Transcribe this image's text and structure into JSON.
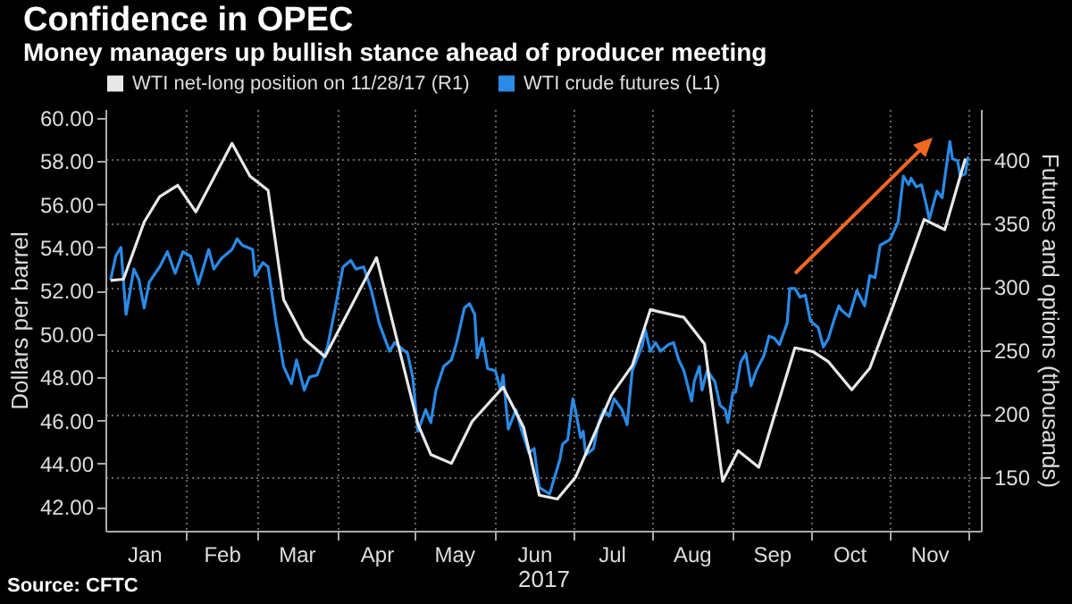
{
  "chart_data": {
    "type": "line",
    "title": "Confidence in OPEC",
    "subtitle": "Money managers up bullish stance ahead of producer meeting",
    "xlabel": "2017",
    "ylabel": "Dollars per barrel",
    "y2label": "Futures and options (thousands)",
    "annotations": [
      "Source: CFTC"
    ],
    "legend": "top left",
    "grid": true,
    "xlim": [
      "2017-01-01",
      "2017-12-06"
    ],
    "xticks": [
      {
        "value": "2017-01-16",
        "label": "Jan"
      },
      {
        "value": "2017-02-01",
        "label": null
      },
      {
        "value": "2017-02-15",
        "label": "Feb"
      },
      {
        "value": "2017-03-01",
        "label": null
      },
      {
        "value": "2017-03-16",
        "label": "Mar"
      },
      {
        "value": "2017-04-01",
        "label": null
      },
      {
        "value": "2017-04-16",
        "label": "Apr"
      },
      {
        "value": "2017-05-01",
        "label": null
      },
      {
        "value": "2017-05-16",
        "label": "May"
      },
      {
        "value": "2017-06-01",
        "label": null
      },
      {
        "value": "2017-06-16",
        "label": "Jun"
      },
      {
        "value": "2017-07-01",
        "label": null
      },
      {
        "value": "2017-07-16",
        "label": "Jul"
      },
      {
        "value": "2017-08-01",
        "label": null
      },
      {
        "value": "2017-08-16",
        "label": "Aug"
      },
      {
        "value": "2017-09-01",
        "label": null
      },
      {
        "value": "2017-09-16",
        "label": "Sep"
      },
      {
        "value": "2017-10-01",
        "label": null
      },
      {
        "value": "2017-10-16",
        "label": "Oct"
      },
      {
        "value": "2017-11-01",
        "label": null
      },
      {
        "value": "2017-11-16",
        "label": "Nov"
      },
      {
        "value": "2017-12-01",
        "label": null
      }
    ],
    "ylim": [
      40.9,
      60.4
    ],
    "yticks": [
      {
        "value": 42,
        "label": "42.00"
      },
      {
        "value": 44,
        "label": "44.00"
      },
      {
        "value": 46,
        "label": "46.00"
      },
      {
        "value": 48,
        "label": "48.00"
      },
      {
        "value": 50,
        "label": "50.00"
      },
      {
        "value": 52,
        "label": "52.00"
      },
      {
        "value": 54,
        "label": "54.00"
      },
      {
        "value": 56,
        "label": "56.00"
      },
      {
        "value": 58,
        "label": "58.00"
      },
      {
        "value": 60,
        "label": "60.00"
      }
    ],
    "y2lim": [
      108,
      440
    ],
    "y2ticks": [
      150,
      200,
      250,
      300,
      350,
      400
    ],
    "series": [
      {
        "name": "WTI net-long position on 11/28/17 (R1)",
        "color": "#e8e8e8",
        "axis": "y2",
        "x": [
          "2017-01-03",
          "2017-01-08",
          "2017-01-16",
          "2017-01-22",
          "2017-01-29",
          "2017-02-05",
          "2017-02-19",
          "2017-02-26",
          "2017-03-05",
          "2017-03-11",
          "2017-03-19",
          "2017-03-27",
          "2017-04-16",
          "2017-05-02",
          "2017-05-07",
          "2017-05-15",
          "2017-05-23",
          "2017-06-04",
          "2017-06-12",
          "2017-06-18",
          "2017-06-25",
          "2017-07-02",
          "2017-07-16",
          "2017-07-24",
          "2017-07-31",
          "2017-08-13",
          "2017-08-21",
          "2017-08-28",
          "2017-09-03",
          "2017-09-11",
          "2017-09-25",
          "2017-10-02",
          "2017-10-08",
          "2017-10-17",
          "2017-10-24",
          "2017-11-02",
          "2017-11-14",
          "2017-11-22",
          "2017-11-30"
        ],
        "values": [
          305,
          306,
          351,
          371,
          380,
          359,
          413,
          387,
          376,
          290,
          259,
          245,
          323,
          192,
          168,
          161,
          194,
          221,
          189,
          136,
          133,
          150,
          215,
          238,
          282,
          276,
          255,
          147,
          171,
          158,
          252,
          249,
          241,
          219,
          236,
          285,
          353,
          345,
          401
        ]
      },
      {
        "name": "WTI crude futures  (L1)",
        "color": "#2a8ae6",
        "x": [
          "2017-01-03",
          "2017-01-05",
          "2017-01-07",
          "2017-01-09",
          "2017-01-12",
          "2017-01-14",
          "2017-01-16",
          "2017-01-18",
          "2017-01-22",
          "2017-01-25",
          "2017-01-28",
          "2017-01-31",
          "2017-02-03",
          "2017-02-06",
          "2017-02-10",
          "2017-02-12",
          "2017-02-15",
          "2017-02-19",
          "2017-02-21",
          "2017-02-23",
          "2017-02-27",
          "2017-02-28",
          "2017-03-03",
          "2017-03-05",
          "2017-03-08",
          "2017-03-11",
          "2017-03-14",
          "2017-03-16",
          "2017-03-19",
          "2017-03-21",
          "2017-03-24",
          "2017-03-28",
          "2017-03-31",
          "2017-04-03",
          "2017-04-06",
          "2017-04-08",
          "2017-04-11",
          "2017-04-14",
          "2017-04-17",
          "2017-04-21",
          "2017-04-23",
          "2017-04-28",
          "2017-04-30",
          "2017-05-02",
          "2017-05-05",
          "2017-05-07",
          "2017-05-09",
          "2017-05-12",
          "2017-05-15",
          "2017-05-17",
          "2017-05-20",
          "2017-05-22",
          "2017-05-24",
          "2017-05-25",
          "2017-05-27",
          "2017-05-29",
          "2017-06-01",
          "2017-06-03",
          "2017-06-04",
          "2017-06-06",
          "2017-06-09",
          "2017-06-11",
          "2017-06-14",
          "2017-06-16",
          "2017-06-18",
          "2017-06-22",
          "2017-06-24",
          "2017-06-26",
          "2017-06-27",
          "2017-06-29",
          "2017-07-01",
          "2017-07-02",
          "2017-07-04",
          "2017-07-05",
          "2017-07-06",
          "2017-07-09",
          "2017-07-11",
          "2017-07-13",
          "2017-07-15",
          "2017-07-17",
          "2017-07-20",
          "2017-07-22",
          "2017-07-24",
          "2017-07-28",
          "2017-07-29",
          "2017-07-31",
          "2017-08-02",
          "2017-08-04",
          "2017-08-07",
          "2017-08-09",
          "2017-08-11",
          "2017-08-13",
          "2017-08-16",
          "2017-08-17",
          "2017-08-19",
          "2017-08-20",
          "2017-08-22",
          "2017-08-25",
          "2017-08-27",
          "2017-08-29",
          "2017-08-30",
          "2017-09-01",
          "2017-09-02",
          "2017-09-04",
          "2017-09-06",
          "2017-09-08",
          "2017-09-10",
          "2017-09-13",
          "2017-09-15",
          "2017-09-17",
          "2017-09-19",
          "2017-09-22",
          "2017-09-23",
          "2017-09-25",
          "2017-09-27",
          "2017-09-29",
          "2017-10-01",
          "2017-10-04",
          "2017-10-06",
          "2017-10-08",
          "2017-10-10",
          "2017-10-12",
          "2017-10-13",
          "2017-10-16",
          "2017-10-19",
          "2017-10-22",
          "2017-10-24",
          "2017-10-26",
          "2017-10-28",
          "2017-10-31",
          "2017-11-01",
          "2017-11-04",
          "2017-11-06",
          "2017-11-08",
          "2017-11-09",
          "2017-11-11",
          "2017-11-13",
          "2017-11-15",
          "2017-11-16",
          "2017-11-19",
          "2017-11-21",
          "2017-11-22",
          "2017-11-24",
          "2017-11-25",
          "2017-11-27",
          "2017-11-28",
          "2017-11-30",
          "2017-12-01"
        ],
        "values": [
          52.5,
          53.6,
          54.0,
          50.9,
          53.0,
          52.5,
          51.2,
          52.4,
          53.1,
          53.8,
          52.8,
          53.8,
          53.6,
          52.3,
          53.9,
          53.0,
          53.5,
          53.9,
          54.4,
          54.1,
          53.9,
          52.7,
          53.3,
          53.1,
          50.6,
          48.5,
          47.7,
          48.8,
          47.4,
          48.0,
          48.1,
          49.4,
          51.2,
          53.1,
          53.4,
          53.0,
          53.1,
          52.0,
          50.5,
          49.2,
          49.6,
          49.1,
          48.0,
          45.5,
          46.5,
          45.9,
          47.4,
          48.5,
          48.8,
          49.6,
          51.2,
          51.4,
          50.9,
          48.9,
          49.8,
          48.4,
          48.3,
          47.4,
          48.1,
          45.6,
          46.5,
          45.6,
          44.5,
          44.7,
          42.9,
          42.6,
          43.4,
          44.2,
          44.9,
          45.1,
          47.0,
          46.5,
          45.2,
          45.5,
          44.4,
          44.7,
          45.9,
          46.5,
          46.2,
          47.0,
          46.5,
          45.8,
          48.3,
          49.5,
          50.2,
          49.2,
          49.6,
          49.2,
          49.5,
          49.6,
          48.8,
          48.3,
          46.9,
          47.8,
          48.5,
          47.4,
          48.3,
          47.8,
          46.7,
          46.5,
          45.9,
          47.3,
          47.3,
          48.7,
          49.1,
          47.6,
          48.3,
          49.0,
          49.9,
          49.8,
          49.5,
          50.5,
          52.1,
          52.1,
          51.7,
          51.8,
          50.6,
          50.3,
          49.4,
          49.8,
          50.6,
          51.3,
          51.1,
          50.8,
          52.0,
          51.3,
          52.7,
          52.6,
          54.1,
          54.3,
          54.4,
          55.2,
          57.3,
          56.9,
          57.2,
          56.8,
          56.9,
          55.9,
          55.3,
          56.6,
          56.3,
          57.2,
          58.9,
          58.1,
          58.0,
          57.3,
          57.4,
          58.2
        ]
      }
    ]
  }
}
